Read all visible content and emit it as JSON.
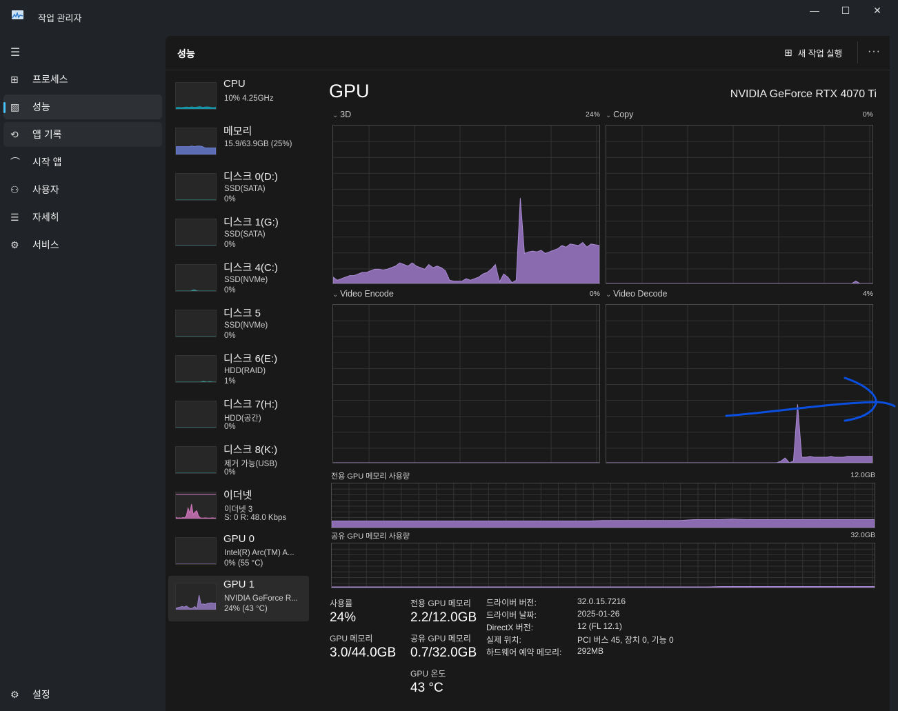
{
  "window": {
    "title": "작업 관리자",
    "minimize": "—",
    "maximize": "☐",
    "close": "✕"
  },
  "sidebar": {
    "items": [
      {
        "label": "프로세스",
        "icon": "processes-icon",
        "glyph": "⊞"
      },
      {
        "label": "성능",
        "icon": "performance-icon",
        "glyph": "▨",
        "selected": true
      },
      {
        "label": "앱 기록",
        "icon": "app-history-icon",
        "glyph": "⟲"
      },
      {
        "label": "시작 앱",
        "icon": "startup-icon",
        "glyph": "⌒"
      },
      {
        "label": "사용자",
        "icon": "users-icon",
        "glyph": "⚇"
      },
      {
        "label": "자세히",
        "icon": "details-icon",
        "glyph": "☰"
      },
      {
        "label": "서비스",
        "icon": "services-icon",
        "glyph": "⚙"
      }
    ],
    "settings": "설정"
  },
  "header": {
    "title": "성능",
    "new_task": "새 작업 실행",
    "more": "···"
  },
  "devices": [
    {
      "name": "CPU",
      "l1": "10% 4.25GHz",
      "l2": "",
      "color": "#17a2b8",
      "values": [
        5,
        6,
        5,
        6,
        7,
        6,
        8,
        6,
        7,
        9,
        6,
        7,
        8,
        6,
        5,
        6
      ]
    },
    {
      "name": "메모리",
      "l1": "15.9/63.9GB (25%)",
      "l2": "",
      "color": "#6b7fd7",
      "values": [
        30,
        30,
        30,
        30,
        30,
        30,
        32,
        30,
        32,
        32,
        30,
        25,
        25,
        25,
        25,
        25
      ]
    },
    {
      "name": "디스크 0(D:)",
      "l1": "SSD(SATA)",
      "l2": "0%",
      "color": "#3a8f8f",
      "values": [
        0,
        0,
        0,
        0,
        0,
        0,
        0,
        0
      ]
    },
    {
      "name": "디스크 1(G:)",
      "l1": "SSD(SATA)",
      "l2": "0%",
      "color": "#3a8f8f",
      "values": [
        0,
        0,
        0,
        0,
        0,
        0,
        0,
        0
      ]
    },
    {
      "name": "디스크 4(C:)",
      "l1": "SSD(NVMe)",
      "l2": "0%",
      "color": "#3a8f8f",
      "values": [
        0,
        0,
        0,
        0,
        0,
        5,
        0,
        0,
        0,
        0,
        0,
        0
      ]
    },
    {
      "name": "디스크 5",
      "l1": "SSD(NVMe)",
      "l2": "0%",
      "color": "#3a8f8f",
      "values": [
        0,
        0,
        0,
        0,
        0,
        0,
        0,
        0
      ]
    },
    {
      "name": "디스크 6(E:)",
      "l1": "HDD(RAID)",
      "l2": "1%",
      "color": "#3a8f8f",
      "values": [
        0,
        0,
        0,
        0,
        0,
        0,
        0,
        0,
        0,
        3,
        0,
        2,
        0,
        0
      ]
    },
    {
      "name": "디스크 7(H:)",
      "l1": "HDD(공간)",
      "l2": "0%",
      "color": "#3a8f8f",
      "values": [
        0,
        0,
        0,
        0,
        0,
        0,
        0,
        0
      ]
    },
    {
      "name": "디스크 8(K:)",
      "l1": "제거 가능(USB)",
      "l2": "0%",
      "color": "#3a8f8f",
      "values": [
        0,
        0,
        0,
        0,
        0,
        0,
        0,
        0
      ]
    },
    {
      "name": "이더넷",
      "l1": "이더넷 3",
      "l2": "S: 0 R: 48.0 Kbps",
      "color": "#d678c0",
      "values": [
        5,
        2,
        3,
        2,
        4,
        3,
        10,
        40,
        20,
        55,
        15,
        25,
        30,
        10,
        3,
        2,
        2,
        3,
        2,
        2,
        2,
        3,
        2,
        2
      ]
    },
    {
      "name": "GPU 0",
      "l1": "Intel(R) Arc(TM) A...",
      "l2": "0% (55 °C)",
      "color": "#9a7ec8",
      "values": [
        0,
        0,
        0,
        0,
        0,
        0,
        0,
        0
      ]
    },
    {
      "name": "GPU 1",
      "l1": "NVIDIA GeForce R...",
      "l2": "24% (43 °C)",
      "color": "#9a7ec8",
      "selected": true,
      "values": [
        5,
        8,
        10,
        12,
        10,
        14,
        8,
        4,
        6,
        12,
        3,
        55,
        20,
        22,
        20,
        24,
        25,
        26,
        24,
        25
      ]
    }
  ],
  "gpu": {
    "title": "GPU",
    "model": "NVIDIA GeForce RTX 4070 Ti",
    "engines": [
      {
        "label": "3D",
        "value": "24%",
        "values": [
          4,
          2,
          3,
          4,
          5,
          5,
          6,
          7,
          7,
          8,
          9,
          9,
          8.5,
          9,
          10,
          11,
          13,
          12,
          11,
          13,
          11,
          10,
          9,
          12,
          10,
          11,
          10,
          8,
          2,
          1.5,
          1.5,
          1.5,
          3,
          2,
          3,
          4,
          6,
          7,
          9,
          12,
          1,
          6,
          4,
          0.5,
          2,
          54,
          19,
          20,
          20.5,
          20,
          21,
          19,
          20,
          21,
          22,
          24,
          23,
          25,
          24.5,
          24,
          26,
          23,
          25,
          24.5,
          24
        ]
      },
      {
        "label": "Copy",
        "value": "0%",
        "values": [
          0,
          0,
          0,
          0,
          0,
          0,
          0,
          0,
          0,
          0,
          0,
          0,
          0,
          0,
          0,
          0,
          0,
          0,
          0,
          0,
          0,
          0,
          0,
          0,
          0,
          0,
          0,
          0,
          0,
          0,
          0,
          0,
          0,
          0,
          0,
          0,
          0,
          0,
          0,
          0,
          0,
          0,
          0,
          0,
          0,
          0,
          0,
          0,
          0,
          0,
          0,
          0,
          0,
          0,
          0,
          0,
          0,
          0,
          0,
          0,
          1.5,
          0,
          0,
          0,
          0
        ]
      },
      {
        "label": "Video Encode",
        "value": "0%",
        "values": [
          0,
          0,
          0,
          0,
          0,
          0,
          0,
          0,
          0,
          0
        ]
      },
      {
        "label": "Video Decode",
        "value": "4%",
        "values": [
          0,
          0,
          0,
          0,
          0,
          0,
          0,
          0,
          0,
          0,
          0,
          0,
          0,
          0,
          0,
          0,
          0,
          0,
          0,
          0,
          0,
          0,
          0,
          0,
          0,
          0,
          0,
          0,
          0,
          0,
          0,
          0,
          0,
          0,
          0,
          0,
          0,
          0,
          0,
          0,
          0,
          0,
          1,
          3,
          0,
          1,
          37,
          3.5,
          3.5,
          4,
          3.5,
          3.5,
          3.5,
          3.5,
          4,
          3.5,
          3.5,
          3.5,
          4,
          4,
          4,
          4,
          4,
          4,
          4
        ]
      }
    ],
    "dedicated": {
      "label": "전용 GPU 메모리 사용량",
      "max": "12.0GB",
      "values": [
        15,
        15,
        15,
        15,
        15,
        15,
        15,
        15,
        15,
        15,
        15,
        15,
        15,
        15,
        15,
        15,
        15,
        15,
        15,
        15,
        15,
        16,
        16,
        16,
        16,
        16,
        16,
        16,
        18,
        18,
        18,
        19,
        18,
        18,
        18,
        18,
        18,
        18,
        18,
        18,
        18,
        18,
        18
      ]
    },
    "shared": {
      "label": "공유 GPU 메모리 사용량",
      "max": "32.0GB",
      "values": [
        1.5,
        1.5,
        1.5,
        1.5,
        1.5,
        1.5,
        1.5,
        1.5,
        1.5,
        1.5,
        1.5,
        1.5,
        1.5,
        1.5,
        1.5,
        1.5,
        1.5,
        1.5,
        1.5,
        1.5,
        1.5,
        1.5,
        1.5,
        1.5,
        1.5,
        1.5,
        1.5,
        1.5,
        2.3,
        2.3,
        2.3,
        2.3,
        2.3,
        2.3,
        2.3,
        2.3,
        2.3,
        2.3,
        2.3,
        2.3
      ]
    },
    "stats": {
      "util_label": "사용률",
      "util": "24%",
      "gpumem_label": "GPU 메모리",
      "gpumem": "3.0/44.0GB",
      "ded_label": "전용 GPU 메모리",
      "ded": "2.2/12.0GB",
      "shr_label": "공유 GPU 메모리",
      "shr": "0.7/32.0GB",
      "temp_label": "GPU 온도",
      "temp": "43 °C"
    },
    "info": [
      {
        "k": "드라이버 버전:",
        "v": "32.0.15.7216"
      },
      {
        "k": "드라이버 날짜:",
        "v": "2025-01-26"
      },
      {
        "k": "DirectX 버전:",
        "v": "12 (FL 12.1)"
      },
      {
        "k": "실제 위치:",
        "v": "PCI 버스 45, 장치 0, 기능 0"
      },
      {
        "k": "하드웨어 예약 메모리:",
        "v": "292MB"
      }
    ]
  },
  "colors": {
    "gpu_fill": "#8a6bb0",
    "gpu_line": "#a98bd3",
    "accent": "#4cc2ff",
    "annotation": "#0a4fe0"
  }
}
